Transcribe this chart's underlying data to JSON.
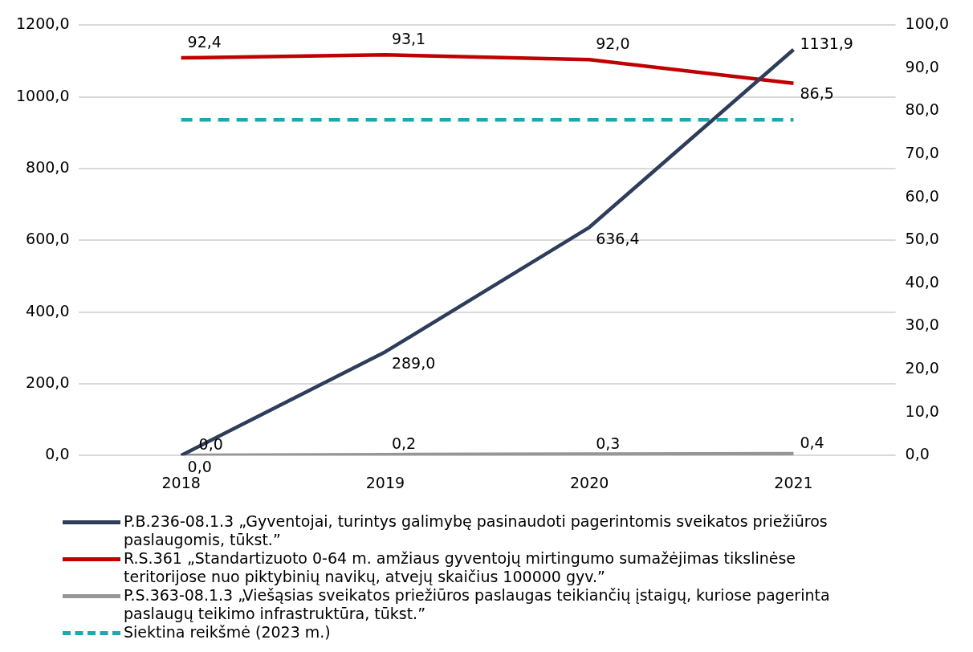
{
  "chart_data": {
    "type": "line",
    "categories": [
      "2018",
      "2019",
      "2020",
      "2021"
    ],
    "ylim": [
      0,
      1200
    ],
    "yticks": [
      {
        "value": 0,
        "label": "0,0"
      },
      {
        "value": 200,
        "label": "200,0"
      },
      {
        "value": 400,
        "label": "400,0"
      },
      {
        "value": 600,
        "label": "600,0"
      },
      {
        "value": 800,
        "label": "800,0"
      },
      {
        "value": 1000,
        "label": "1000,0"
      },
      {
        "value": 1200,
        "label": "1200,0"
      }
    ],
    "y2lim": [
      0,
      100
    ],
    "y2ticks": [
      {
        "value": 0,
        "label": "0,0"
      },
      {
        "value": 10,
        "label": "10,0"
      },
      {
        "value": 20,
        "label": "20,0"
      },
      {
        "value": 30,
        "label": "30,0"
      },
      {
        "value": 40,
        "label": "40,0"
      },
      {
        "value": 50,
        "label": "50,0"
      },
      {
        "value": 60,
        "label": "60,0"
      },
      {
        "value": 70,
        "label": "70,0"
      },
      {
        "value": 80,
        "label": "80,0"
      },
      {
        "value": 90,
        "label": "90,0"
      },
      {
        "value": 100,
        "label": "100,0"
      }
    ],
    "grid": "y",
    "legend": "bottom",
    "series": [
      {
        "name": "P.B.236-08.1.3 „Gyventojai, turintys galimybę pasinaudoti pagerintomis sveikatos priežiūros paslaugomis, tūkst.”",
        "color": "#2e3d5a",
        "values": [
          0,
          289,
          636.4,
          1131.9
        ],
        "value_labels": [
          "0,0",
          "289,0",
          "636,4",
          "1131,9"
        ]
      },
      {
        "name": "R.S.361 „Standartizuoto 0-64 m. amžiaus gyventojų mirtingumo sumažėjimas tikslinėse teritorijose nuo piktybinių navikų, atvejų skaičius 100000 gyv.”",
        "color": "#c00000",
        "axis": "y2",
        "values": [
          92.4,
          93.1,
          92,
          86.5
        ],
        "value_labels": [
          "92,4",
          "93,1",
          "92,0",
          "86,5"
        ]
      },
      {
        "name": "P.S.363-08.1.3 „Viešąsias sveikatos priežiūros paslaugas teikiančių įstaigų, kuriose pagerinta paslaugų teikimo infrastruktūra, tūkst.”",
        "color": "#969696",
        "axis": "y2",
        "values": [
          0,
          0.2,
          0.3,
          0.4
        ],
        "value_labels": [
          "0,0",
          "0,2",
          "0,3",
          "0,4"
        ]
      },
      {
        "name": "Siektina reikšmė (2023 m.)",
        "color": "#1fa7b0",
        "axis": "y2",
        "line_style": "dashed",
        "values": [
          78,
          78,
          78,
          78
        ]
      }
    ]
  }
}
